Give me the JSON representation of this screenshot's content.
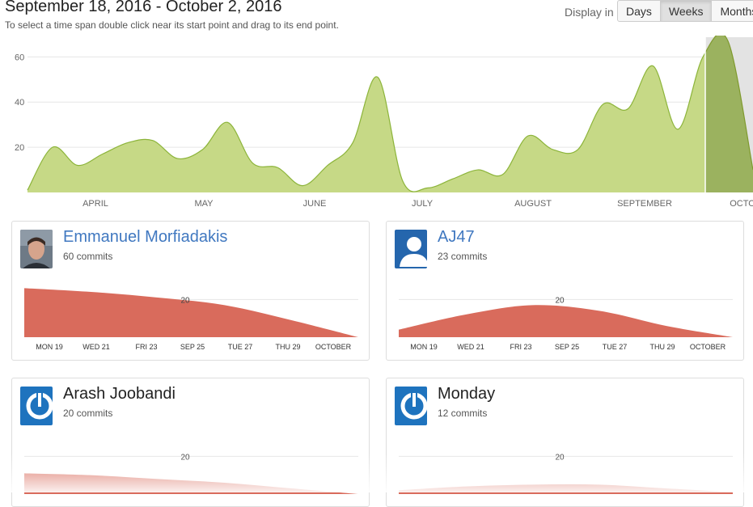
{
  "header": {
    "title": "September 18, 2016 - October 2, 2016",
    "subtitle": "To select a time span double click near its start point and drag to its end point.",
    "display_label": "Display in",
    "buttons": [
      "Days",
      "Weeks",
      "Months"
    ],
    "active_button": "Weeks"
  },
  "colors": {
    "main_fill": "#c6d986",
    "main_stroke": "#8cb43a",
    "selection": "#9bb25f",
    "card_fill": "#d96b5c",
    "link": "#4078c0"
  },
  "chart_data": [
    {
      "type": "area",
      "title": "",
      "y_ticks": [
        20,
        40,
        60
      ],
      "ylim": [
        0,
        68
      ],
      "x_labels": [
        "APRIL",
        "MAY",
        "JUNE",
        "JULY",
        "AUGUST",
        "SEPTEMBER",
        "OCTO"
      ],
      "series": [
        {
          "values": [
            1,
            20,
            12,
            17,
            22,
            23,
            15,
            19,
            31,
            13,
            11,
            3,
            12,
            22,
            51,
            5,
            2,
            6,
            10,
            8,
            25,
            19,
            19,
            39,
            37,
            56,
            28,
            60,
            67,
            10
          ]
        }
      ],
      "selection": {
        "from": "September 18, 2016",
        "to": "October 2, 2016"
      }
    }
  ],
  "contributors": [
    {
      "name": "Emmanuel Morfiadakis",
      "commits": "60 commits",
      "avatar": "photo-avatar",
      "link": true,
      "chart": {
        "type": "area",
        "y_tick": "20",
        "ylim": [
          0,
          30
        ],
        "values": [
          26,
          24,
          21,
          17,
          9,
          0
        ],
        "ticks": [
          "MON 19",
          "WED 21",
          "FRI 23",
          "SEP 25",
          "TUE 27",
          "THU 29",
          "OCTOBER"
        ]
      }
    },
    {
      "name": "AJ47",
      "commits": "23 commits",
      "avatar": "person-avatar",
      "link": true,
      "chart": {
        "type": "area",
        "y_tick": "20",
        "ylim": [
          0,
          30
        ],
        "values": [
          4,
          12,
          17,
          14,
          6,
          0
        ],
        "ticks": [
          "MON 19",
          "WED 21",
          "FRI 23",
          "SEP 25",
          "TUE 27",
          "THU 29",
          "OCTOBER"
        ]
      }
    },
    {
      "name": "Arash Joobandi",
      "commits": "20 commits",
      "avatar": "power-avatar",
      "link": false,
      "chart": {
        "type": "area",
        "y_tick": "20",
        "ylim": [
          0,
          30
        ],
        "values": [
          11,
          10,
          8,
          6,
          3,
          0
        ],
        "ticks": []
      }
    },
    {
      "name": "Monday",
      "commits": "12 commits",
      "avatar": "power-avatar",
      "link": false,
      "chart": {
        "type": "area",
        "y_tick": "20",
        "ylim": [
          0,
          30
        ],
        "values": [
          2,
          4,
          5,
          5,
          3,
          1
        ],
        "ticks": []
      }
    }
  ]
}
